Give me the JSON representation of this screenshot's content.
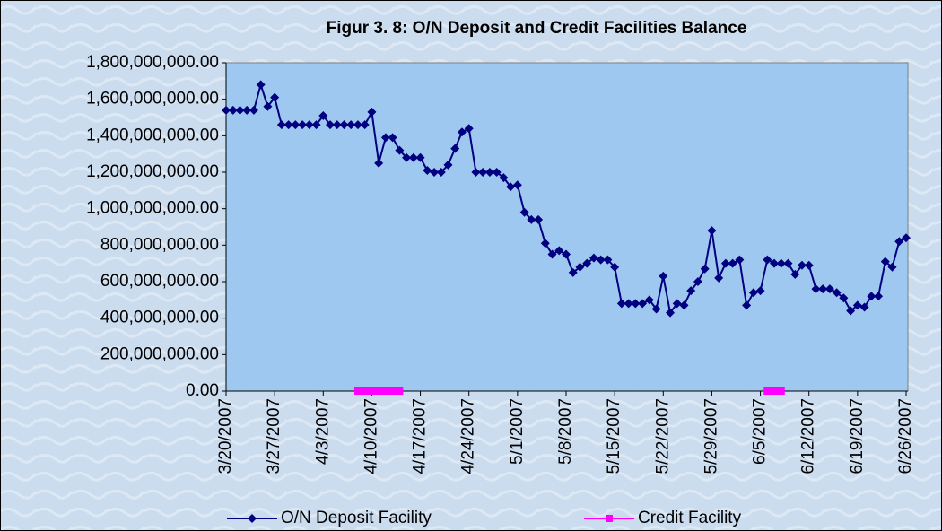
{
  "chart_data": {
    "type": "line",
    "title": "Figur 3. 8: O/N Deposit and Credit Facilities Balance",
    "categories": [
      "3/20/2007",
      null,
      null,
      null,
      null,
      null,
      null,
      "3/27/2007",
      null,
      null,
      null,
      null,
      null,
      null,
      "4/3/2007",
      null,
      null,
      null,
      null,
      null,
      null,
      "4/10/2007",
      null,
      null,
      null,
      null,
      null,
      null,
      "4/17/2007",
      null,
      null,
      null,
      null,
      null,
      null,
      "4/24/2007",
      null,
      null,
      null,
      null,
      null,
      null,
      "5/1/2007",
      null,
      null,
      null,
      null,
      null,
      null,
      "5/8/2007",
      null,
      null,
      null,
      null,
      null,
      null,
      "5/15/2007",
      null,
      null,
      null,
      null,
      null,
      null,
      "5/22/2007",
      null,
      null,
      null,
      null,
      null,
      null,
      "5/29/2007",
      null,
      null,
      null,
      null,
      null,
      null,
      "6/5/2007",
      null,
      null,
      null,
      null,
      null,
      null,
      "6/12/2007",
      null,
      null,
      null,
      null,
      null,
      null,
      "6/19/2007",
      null,
      null,
      null,
      null,
      null,
      null,
      "6/26/2007"
    ],
    "series": [
      {
        "name": "O/N Deposit Facility",
        "color": "#000080",
        "marker": "diamond",
        "values": [
          1540000000,
          1540000000,
          1540000000,
          1540000000,
          1540000000,
          1680000000,
          1560000000,
          1610000000,
          1460000000,
          1460000000,
          1460000000,
          1460000000,
          1460000000,
          1460000000,
          1510000000,
          1460000000,
          1460000000,
          1460000000,
          1460000000,
          1460000000,
          1460000000,
          1530000000,
          1250000000,
          1390000000,
          1390000000,
          1320000000,
          1280000000,
          1280000000,
          1280000000,
          1210000000,
          1200000000,
          1200000000,
          1240000000,
          1330000000,
          1420000000,
          1440000000,
          1200000000,
          1200000000,
          1200000000,
          1200000000,
          1170000000,
          1120000000,
          1130000000,
          980000000,
          940000000,
          940000000,
          810000000,
          750000000,
          770000000,
          750000000,
          650000000,
          680000000,
          700000000,
          730000000,
          720000000,
          720000000,
          680000000,
          480000000,
          480000000,
          480000000,
          480000000,
          500000000,
          450000000,
          630000000,
          430000000,
          480000000,
          470000000,
          550000000,
          600000000,
          670000000,
          880000000,
          620000000,
          700000000,
          700000000,
          720000000,
          470000000,
          540000000,
          550000000,
          720000000,
          700000000,
          700000000,
          700000000,
          640000000,
          690000000,
          690000000,
          560000000,
          560000000,
          560000000,
          540000000,
          510000000,
          440000000,
          470000000,
          460000000,
          520000000,
          520000000,
          710000000,
          680000000,
          820000000,
          840000000
        ]
      },
      {
        "name": "Credit Facility",
        "color": "#ff00ff",
        "marker": "square",
        "values": [
          null,
          null,
          null,
          null,
          null,
          null,
          null,
          null,
          null,
          null,
          null,
          null,
          null,
          null,
          null,
          null,
          null,
          null,
          null,
          0,
          0,
          0,
          0,
          0,
          0,
          0,
          null,
          null,
          null,
          null,
          null,
          null,
          null,
          null,
          null,
          null,
          null,
          null,
          null,
          null,
          null,
          null,
          null,
          null,
          null,
          null,
          null,
          null,
          null,
          null,
          null,
          null,
          null,
          null,
          null,
          null,
          null,
          null,
          null,
          null,
          null,
          null,
          null,
          null,
          null,
          null,
          null,
          null,
          null,
          null,
          null,
          null,
          null,
          null,
          null,
          null,
          null,
          null,
          0,
          0,
          0,
          null,
          null,
          null,
          null,
          null,
          null,
          null,
          null,
          null,
          null,
          null,
          null,
          null,
          null,
          null,
          null,
          null,
          null
        ]
      }
    ],
    "ylim": [
      0,
      1800000000
    ],
    "yticks": [
      {
        "value": 0,
        "label": "0.00"
      },
      {
        "value": 200000000,
        "label": "200,000,000.00"
      },
      {
        "value": 400000000,
        "label": "400,000,000.00"
      },
      {
        "value": 600000000,
        "label": "600,000,000.00"
      },
      {
        "value": 800000000,
        "label": "800,000,000.00"
      },
      {
        "value": 1000000000,
        "label": "1,000,000,000.00"
      },
      {
        "value": 1200000000,
        "label": "1,200,000,000.00"
      },
      {
        "value": 1400000000,
        "label": "1,400,000,000.00"
      },
      {
        "value": 1600000000,
        "label": "1,600,000,000.00"
      },
      {
        "value": 1800000000,
        "label": "1,800,000,000.00"
      }
    ],
    "legend": "bottom"
  }
}
